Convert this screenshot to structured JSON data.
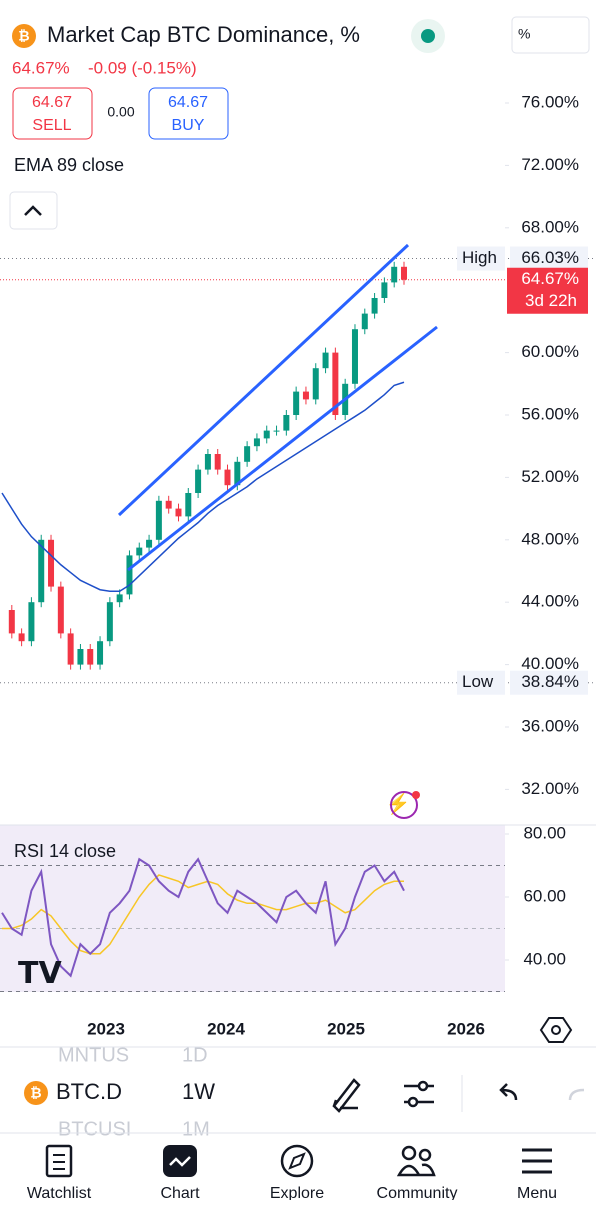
{
  "header": {
    "title": "Market Cap BTC Dominance, %",
    "last": "64.67%",
    "change": "-0.09 (-0.15%)",
    "sell_price": "64.67",
    "sell": "SELL",
    "spread": "0.00",
    "buy_price": "64.67",
    "buy": "BUY",
    "unit_button": "%"
  },
  "indicator": "EMA 89 close",
  "price_axis": {
    "ticks": [
      "76.00%",
      "72.00%",
      "68.00%",
      "60.00%",
      "56.00%",
      "52.00%",
      "48.00%",
      "44.00%",
      "40.00%",
      "36.00%",
      "32.00%"
    ],
    "tick_values": [
      76,
      72,
      68,
      60,
      56,
      52,
      48,
      44,
      40,
      36,
      32
    ]
  },
  "high": {
    "label": "High",
    "value": "66.03%",
    "level": 66.03
  },
  "low": {
    "label": "Low",
    "value": "38.84%",
    "level": 38.84
  },
  "current": {
    "value": "64.67%",
    "countdown": "3d 22h",
    "level": 64.67
  },
  "closes": [
    43.5,
    42,
    41.5,
    44,
    48,
    45,
    42,
    40,
    41,
    40,
    41.5,
    44,
    44.5,
    47,
    47.5,
    48,
    50.5,
    50,
    49.5,
    51,
    52.5,
    53.5,
    52.5,
    51.5,
    53,
    54,
    54.5,
    55,
    55,
    56,
    57.5,
    57,
    59,
    60,
    56,
    58,
    61.5,
    62.5,
    63.5,
    64.5,
    65.5,
    64.67
  ],
  "ema": [
    51,
    50,
    49,
    48.2,
    47.6,
    47,
    46.4,
    45.9,
    45.4,
    45.1,
    44.8,
    44.7,
    44.7,
    45.1,
    45.7,
    46.3,
    46.9,
    47.5,
    48.1,
    48.6,
    49.1,
    49.7,
    50.2,
    50.6,
    51,
    51.4,
    51.9,
    52.3,
    52.7,
    53.1,
    53.5,
    53.9,
    54.3,
    54.7,
    55.1,
    55.5,
    55.9,
    56.3,
    56.8,
    57.3,
    57.9,
    58.1
  ],
  "rsi": {
    "label": "RSI 14 close",
    "ticks": [
      "80.00",
      "60.00",
      "40.00"
    ],
    "tick_values": [
      80,
      60,
      40
    ],
    "upper": 70,
    "lower": 30,
    "values": [
      55,
      50,
      48,
      62,
      68,
      45,
      38,
      35,
      45,
      42,
      45,
      55,
      58,
      62,
      72,
      70,
      65,
      62,
      60,
      68,
      72,
      65,
      58,
      55,
      62,
      60,
      58,
      55,
      52,
      60,
      62,
      58,
      55,
      65,
      45,
      50,
      60,
      68,
      70,
      65,
      68,
      62
    ],
    "ma": [
      50,
      50,
      51,
      53,
      56,
      54,
      50,
      46,
      43,
      42,
      42,
      45,
      50,
      55,
      60,
      64,
      67,
      66,
      65,
      63,
      64,
      65,
      64,
      61,
      59,
      58,
      58,
      57,
      56,
      56,
      57,
      58,
      58,
      59,
      57,
      55,
      56,
      59,
      62,
      64,
      65,
      65
    ]
  },
  "time_axis": [
    "2023",
    "2024",
    "2025",
    "2026"
  ],
  "toolbar": {
    "symbol": "BTC.D",
    "interval": "1W",
    "prev_symbol": "MNTUS",
    "prev_interval": "1D",
    "next_symbol": "BTCUSI",
    "next_interval": "1M"
  },
  "nav": [
    "Watchlist",
    "Chart",
    "Explore",
    "Community",
    "Menu"
  ]
}
